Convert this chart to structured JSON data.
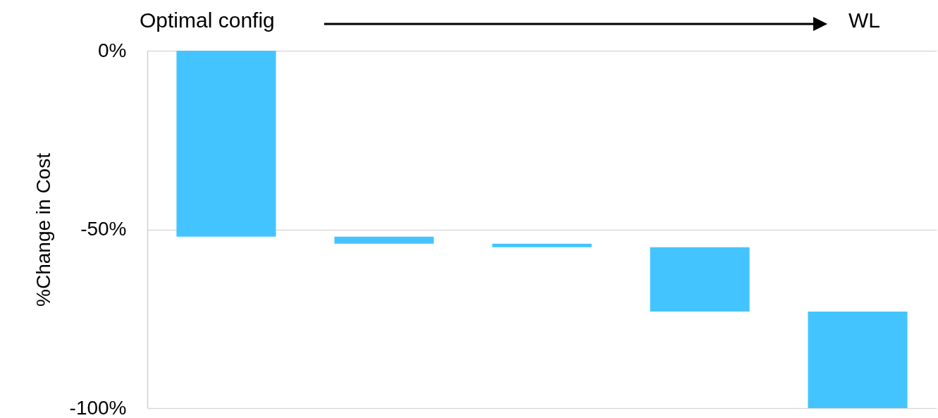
{
  "chart_data": {
    "type": "bar",
    "ylabel": "%Change in Cost",
    "annotations": [
      "Optimal config",
      "WL"
    ],
    "categories": [
      null,
      null,
      null,
      null,
      null
    ],
    "values": [
      -52,
      -2,
      -1,
      -18,
      -27
    ],
    "base": [
      0,
      -52,
      -54,
      -55,
      -73
    ],
    "color": "#44c4ff",
    "ylim": [
      -100,
      0
    ],
    "yticks": [
      {
        "value": -100,
        "label": "-100%"
      },
      {
        "value": -50,
        "label": "-50%"
      },
      {
        "value": 0,
        "label": "0%"
      }
    ],
    "grid": "y"
  }
}
